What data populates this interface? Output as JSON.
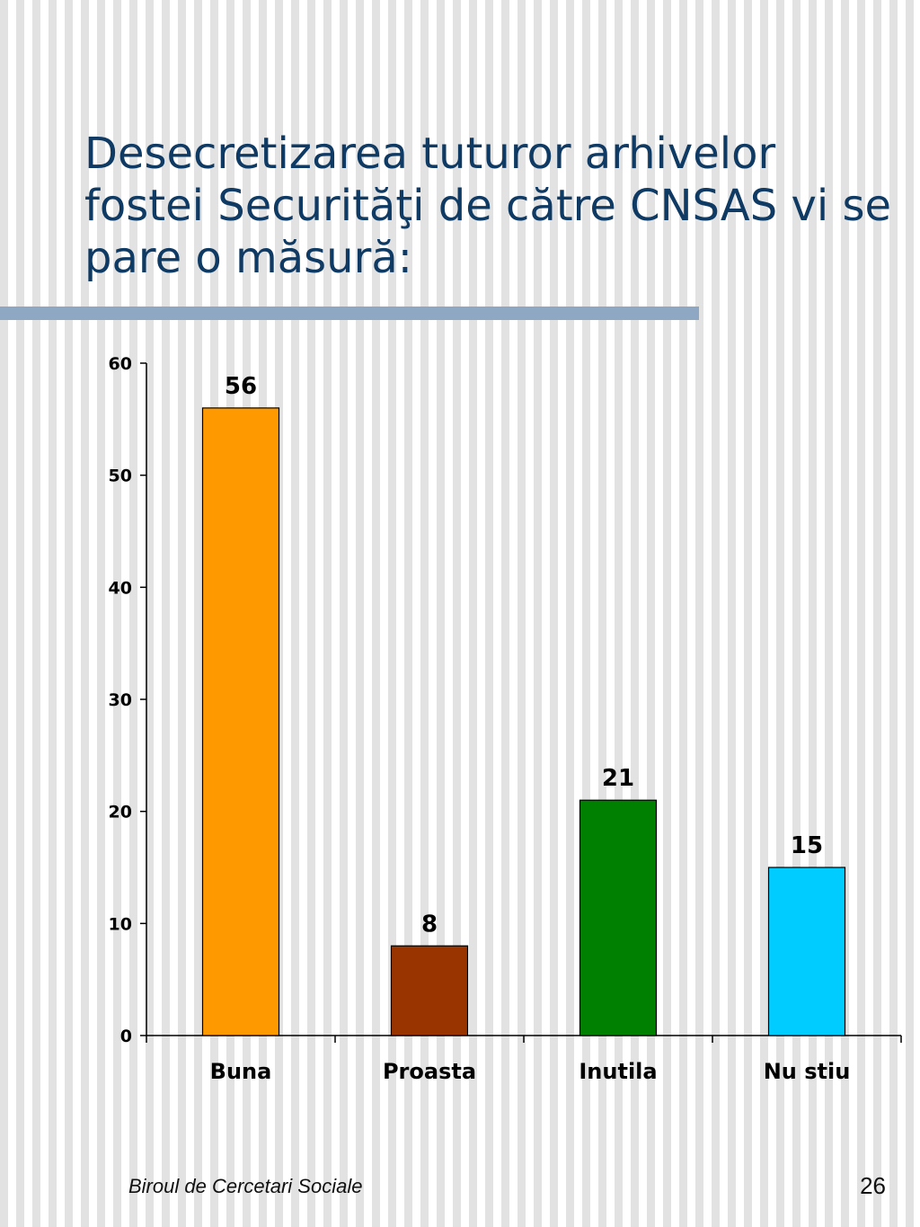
{
  "slide": {
    "title": "Desecretizarea tuturor arhivelor fostei Securităţi de către CNSAS vi se pare o măsură:",
    "footer_org": "Biroul de Cercetari Sociale",
    "page_number": "26"
  },
  "colors": {
    "title_text": "#0f3a63",
    "title_rule": "#8ea7c2",
    "stripe": "#e2e2e2"
  },
  "chart_data": {
    "type": "bar",
    "categories": [
      "Buna",
      "Proasta",
      "Inutila",
      "Nu stiu"
    ],
    "values": [
      56,
      8,
      21,
      15
    ],
    "bar_colors": [
      "#ff9900",
      "#993300",
      "#008000",
      "#00ccff"
    ],
    "data_labels": [
      "56",
      "8",
      "21",
      "15"
    ],
    "ylim": [
      0,
      60
    ],
    "yticks": [
      0,
      10,
      20,
      30,
      40,
      50,
      60
    ],
    "ytick_labels": [
      "0",
      "10",
      "20",
      "30",
      "40",
      "50",
      "60"
    ],
    "grid": false,
    "legend": "none"
  }
}
